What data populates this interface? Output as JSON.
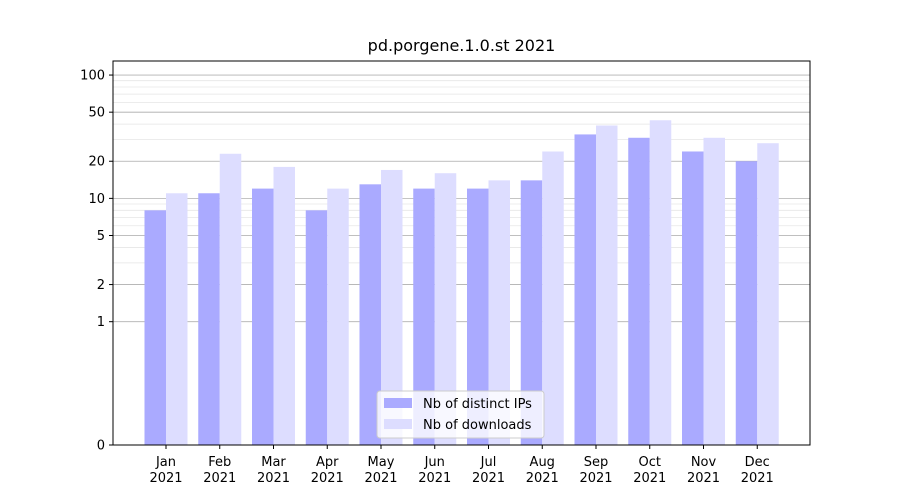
{
  "chart_data": {
    "type": "bar",
    "title": "pd.porgene.1.0.st 2021",
    "xlabel": "",
    "ylabel": "",
    "y_scale": "symlog",
    "ylim": [
      0,
      130
    ],
    "y_tick_labels": [
      "0",
      "1",
      "2",
      "5",
      "10",
      "20",
      "50",
      "100"
    ],
    "grid": "horizontal",
    "legend_position": "lower center",
    "categories": [
      [
        "Jan",
        "2021"
      ],
      [
        "Feb",
        "2021"
      ],
      [
        "Mar",
        "2021"
      ],
      [
        "Apr",
        "2021"
      ],
      [
        "May",
        "2021"
      ],
      [
        "Jun",
        "2021"
      ],
      [
        "Jul",
        "2021"
      ],
      [
        "Aug",
        "2021"
      ],
      [
        "Sep",
        "2021"
      ],
      [
        "Oct",
        "2021"
      ],
      [
        "Nov",
        "2021"
      ],
      [
        "Dec",
        "2021"
      ]
    ],
    "series": [
      {
        "name": "Nb of distinct IPs",
        "color": "#aaaaff",
        "values": [
          8,
          11,
          12,
          8,
          13,
          12,
          12,
          14,
          33,
          31,
          24,
          20
        ]
      },
      {
        "name": "Nb of downloads",
        "color": "#ddddff",
        "values": [
          11,
          23,
          18,
          12,
          17,
          16,
          14,
          24,
          39,
          43,
          31,
          28
        ]
      }
    ]
  }
}
